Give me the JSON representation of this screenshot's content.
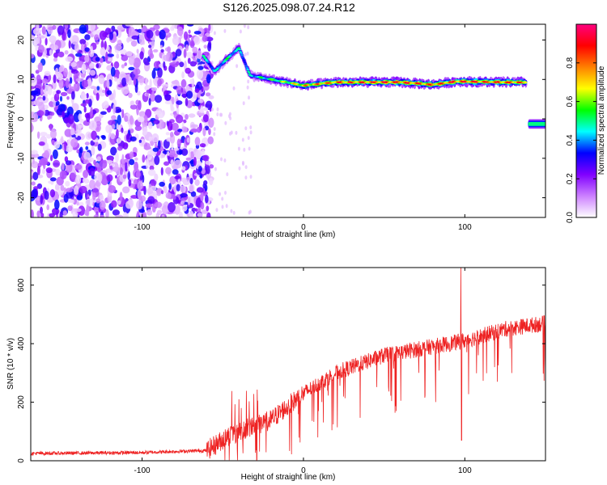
{
  "figure": {
    "title": "S126.2025.098.07.24.R12"
  },
  "chart_data": [
    {
      "type": "heatmap",
      "title": "S126.2025.098.07.24.R12",
      "xlabel": "Height of straight line (km)",
      "ylabel": "Frequency (Hz)",
      "xlim": [
        -169,
        150
      ],
      "ylim": [
        -25,
        24
      ],
      "xticks": [
        -100,
        0,
        100
      ],
      "yticks": [
        -20,
        -10,
        0,
        10,
        20
      ],
      "colorbar": {
        "label": "Normalized spectral amplitude",
        "range": [
          0,
          1
        ],
        "ticks": [
          0.0,
          0.2,
          0.4,
          0.6,
          0.8
        ],
        "colormap": [
          "#ffffff",
          "#cc80ff",
          "#8000ff",
          "#0000ff",
          "#00ffff",
          "#00ff00",
          "#ffff00",
          "#ff8000",
          "#ff0000",
          "#ff0080"
        ]
      },
      "features": {
        "noise_region_x": [
          -169,
          -57
        ],
        "ridge": [
          {
            "x": -62,
            "f": 16,
            "a": 0.5
          },
          {
            "x": -55,
            "f": 12,
            "a": 0.45
          },
          {
            "x": -48,
            "f": 15,
            "a": 0.55
          },
          {
            "x": -40,
            "f": 18,
            "a": 0.5
          },
          {
            "x": -33,
            "f": 11,
            "a": 0.5
          },
          {
            "x": -20,
            "f": 10,
            "a": 0.6
          },
          {
            "x": 0,
            "f": 8.5,
            "a": 0.8
          },
          {
            "x": 20,
            "f": 9.3,
            "a": 0.9
          },
          {
            "x": 40,
            "f": 9.3,
            "a": 0.95
          },
          {
            "x": 60,
            "f": 9.3,
            "a": 0.95
          },
          {
            "x": 80,
            "f": 8.7,
            "a": 0.9
          },
          {
            "x": 95,
            "f": 9.5,
            "a": 0.95
          },
          {
            "x": 120,
            "f": 9.3,
            "a": 0.95
          },
          {
            "x": 138,
            "f": 9.3,
            "a": 0.9
          }
        ],
        "blob": {
          "x": [
            140,
            150
          ],
          "f": -1.3,
          "a": 0.5
        }
      }
    },
    {
      "type": "line",
      "xlabel": "Height of straight line (km)",
      "ylabel": "SNR (10 * v/v)",
      "xlim": [
        -169,
        150
      ],
      "ylim": [
        0,
        660
      ],
      "xticks": [
        -100,
        0,
        100
      ],
      "yticks": [
        0,
        200,
        400,
        600
      ],
      "color": "#ee2222",
      "envelope": [
        {
          "x": -169,
          "y": 25
        },
        {
          "x": -100,
          "y": 28
        },
        {
          "x": -60,
          "y": 35
        },
        {
          "x": -45,
          "y": 90
        },
        {
          "x": -20,
          "y": 140
        },
        {
          "x": 0,
          "y": 230
        },
        {
          "x": 20,
          "y": 300
        },
        {
          "x": 50,
          "y": 360
        },
        {
          "x": 70,
          "y": 380
        },
        {
          "x": 100,
          "y": 410
        },
        {
          "x": 125,
          "y": 450
        },
        {
          "x": 150,
          "y": 470
        }
      ],
      "spikes": [
        {
          "x": 97.5,
          "y": 660
        },
        {
          "x": 98,
          "y": 70
        },
        {
          "x": -40,
          "y": 210
        }
      ]
    }
  ]
}
